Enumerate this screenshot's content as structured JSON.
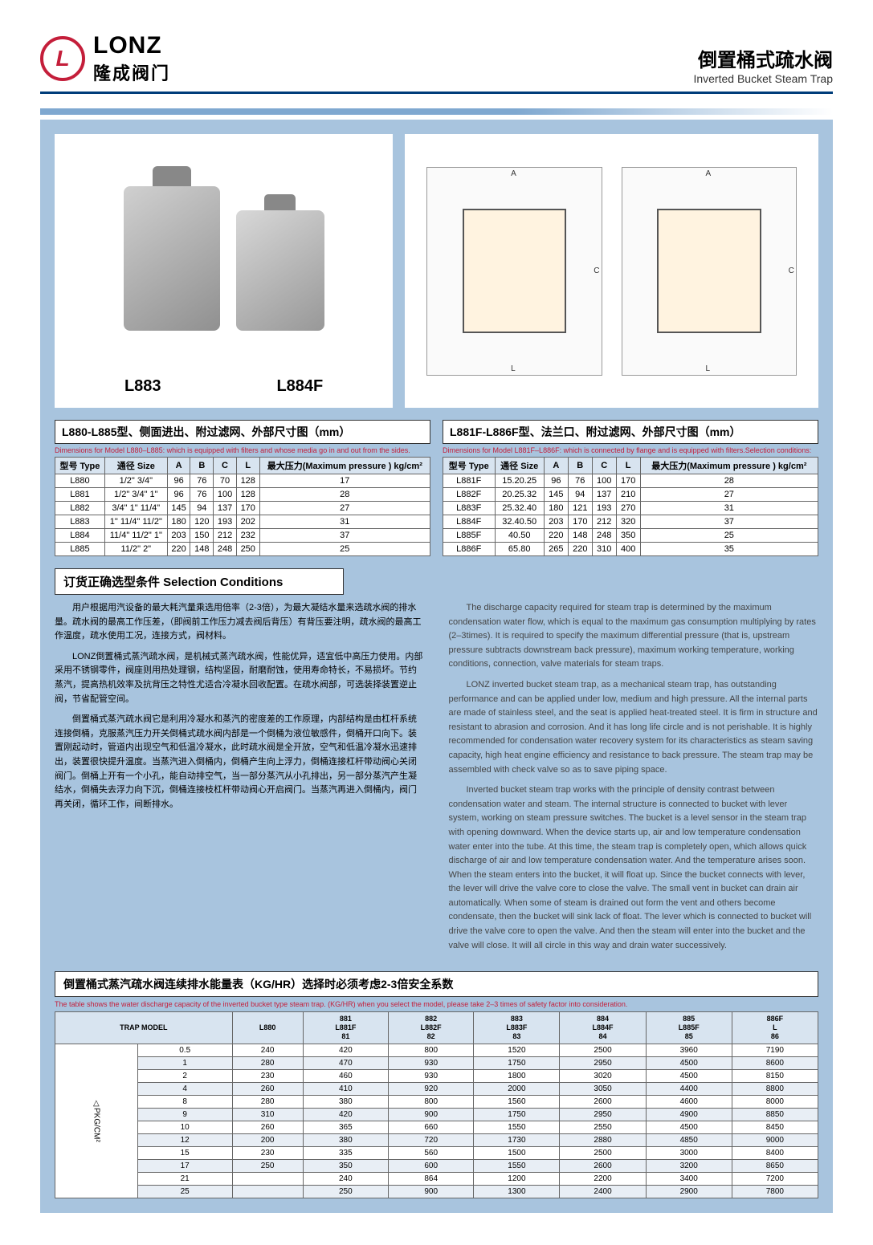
{
  "header": {
    "logo_en": "LONZ",
    "logo_cn": "隆成阀门",
    "title_cn": "倒置桶式疏水阀",
    "title_en": "Inverted Bucket Steam Trap"
  },
  "photos": {
    "label1": "L883",
    "label2": "L884F"
  },
  "table1": {
    "title": "L880-L885型、侧面进出、附过滤网、外部尺寸图（mm）",
    "subtitle": "Dimensions for Model L880–L885: which is equipped with filters and whose media go in and out from the sides.",
    "headers": [
      "型号 Type",
      "通径 Size",
      "A",
      "B",
      "C",
      "L",
      "最大压力(Maximum pressure ) kg/cm²"
    ],
    "rows": [
      [
        "L880",
        "1/2\" 3/4\"",
        "96",
        "76",
        "70",
        "128",
        "17"
      ],
      [
        "L881",
        "1/2\" 3/4\" 1\"",
        "96",
        "76",
        "100",
        "128",
        "28"
      ],
      [
        "L882",
        "3/4\" 1\" 11/4\"",
        "145",
        "94",
        "137",
        "170",
        "27"
      ],
      [
        "L883",
        "1\" 11/4\" 11/2\"",
        "180",
        "120",
        "193",
        "202",
        "31"
      ],
      [
        "L884",
        "11/4\" 11/2\" 1\"",
        "203",
        "150",
        "212",
        "232",
        "37"
      ],
      [
        "L885",
        "11/2\" 2\"",
        "220",
        "148",
        "248",
        "250",
        "25"
      ]
    ]
  },
  "table2": {
    "title": "L881F-L886F型、法兰口、附过滤网、外部尺寸图（mm）",
    "subtitle": "Dimensions for Model L881F–L886F: which is connected by flange and is equipped with filters.Selection conditions:",
    "headers": [
      "型号 Type",
      "通径 Size",
      "A",
      "B",
      "C",
      "L",
      "最大压力(Maximum pressure ) kg/cm²"
    ],
    "rows": [
      [
        "L881F",
        "15.20.25",
        "96",
        "76",
        "100",
        "170",
        "28"
      ],
      [
        "L882F",
        "20.25.32",
        "145",
        "94",
        "137",
        "210",
        "27"
      ],
      [
        "L883F",
        "25.32.40",
        "180",
        "121",
        "193",
        "270",
        "31"
      ],
      [
        "L884F",
        "32.40.50",
        "203",
        "170",
        "212",
        "320",
        "37"
      ],
      [
        "L885F",
        "40.50",
        "220",
        "148",
        "248",
        "350",
        "25"
      ],
      [
        "L886F",
        "65.80",
        "265",
        "220",
        "310",
        "400",
        "35"
      ]
    ]
  },
  "conditions": {
    "title": "订货正确选型条件 Selection Conditions",
    "cn": [
      "用户根据用汽设备的最大耗汽量乘选用倍率（2-3倍），为最大凝结水量来选疏水阀的排水量。疏水阀的最高工作压差，（即阀前工作压力减去阀后背压）有背压要注明，疏水阀的最高工作温度，疏水使用工况，连接方式，阀材料。",
      "LONZ倒置桶式蒸汽疏水阀，是机械式蒸汽疏水阀，性能优异，适宜低中高压力使用。内部采用不锈钢零件，阀座则用热处理钢，结构坚固，耐磨耐蚀，使用寿命特长，不易损坏。节约蒸汽，提高热机效率及抗背压之特性尤适合冷凝水回收配置。在疏水阀部，可选装择装置逆止阀，节省配管空间。",
      "倒置桶式蒸汽疏水阀它是利用冷凝水和蒸汽的密度差的工作原理，内部结构是由杠杆系统连接倒桶，克服蒸汽压力开关倒桶式疏水阀内部是一个倒桶为液位敏感件，倒桶开口向下。装置刚起动时，管道内出现空气和低温冷凝水，此时疏水阀是全开放，空气和低温冷凝水迅速排出，装置很快提升温度。当蒸汽进入倒桶内，倒桶产生向上浮力，倒桶连接杠杆带动阀心关闭阀门。倒桶上开有一个小孔，能自动排空气，当一部分蒸汽从小孔排出，另一部分蒸汽产生凝结水，倒桶失去浮力向下沉，倒桶连接枝杠杆带动阀心开启阀门。当蒸汽再进入倒桶内，阀门再关闭，循环工作，间断排水。"
    ],
    "en": [
      "The discharge capacity required for steam trap is determined by the maximum condensation water flow, which is equal to the maximum gas consumption multiplying by rates (2–3times). It is required to specify the maximum differential pressure (that is, upstream pressure subtracts downstream back pressure), maximum working temperature, working conditions, connection, valve materials for steam traps.",
      "LONZ inverted bucket steam trap, as a mechanical steam trap, has outstanding performance and can be applied under low, medium and high pressure. All the internal parts are made of stainless steel, and the seat is applied heat-treated steel. It is firm in structure and resistant to abrasion and corrosion. And it has long life circle and is not perishable. It is highly recommended for condensation water recovery system for its characteristics as steam saving capacity, high heat engine efficiency and resistance to back pressure. The steam trap may be assembled with check valve so as to save piping space.",
      "Inverted bucket steam trap works with the principle of density contrast between condensation water and steam. The internal structure is connected to bucket with lever system, working on steam pressure switches. The bucket is a level sensor in the steam trap with opening downward. When the device starts up, air and low temperature condensation water enter into the tube. At this time, the steam trap is completely open, which allows quick discharge of air and low temperature condensation water. And the temperature arises soon. When the steam enters into the bucket, it will float up. Since the bucket connects with lever, the lever will drive the valve core to close the valve. The small vent in bucket can drain air automatically. When some of steam is drained out form the vent and others become condensate, then the bucket will sink lack of float. The lever which is connected to bucket will drive the valve core to open the valve. And then the steam will enter into the bucket and the valve will close. It will all circle in this way and drain water successively."
    ]
  },
  "capacity": {
    "title": "倒置桶式蒸汽疏水阀连续排水能量表（KG/HR）选择时必须考虑2-3倍安全系数",
    "subtitle": "The table shows the water discharge capacity of the inverted bucket type steam trap. (KG/HR) when you select the model, please take 2–3 times of safety factor into consideration.",
    "row_header": "△PKG/CM²",
    "col_headers": [
      "TRAP MODEL",
      "L880",
      "881\nL881F\n81",
      "882\nL882F\n82",
      "883\nL883F\n83",
      "884\nL884F\n84",
      "885\nL885F\n85",
      "886F\nL\n86"
    ],
    "rows": [
      [
        "0.5",
        "240",
        "420",
        "800",
        "1520",
        "2500",
        "3960",
        "7190"
      ],
      [
        "1",
        "280",
        "470",
        "930",
        "1750",
        "2950",
        "4500",
        "8600"
      ],
      [
        "2",
        "230",
        "460",
        "930",
        "1800",
        "3020",
        "4500",
        "8150"
      ],
      [
        "4",
        "260",
        "410",
        "920",
        "2000",
        "3050",
        "4400",
        "8800"
      ],
      [
        "8",
        "280",
        "380",
        "800",
        "1560",
        "2600",
        "4600",
        "8000"
      ],
      [
        "9",
        "310",
        "420",
        "900",
        "1750",
        "2950",
        "4900",
        "8850"
      ],
      [
        "10",
        "260",
        "365",
        "660",
        "1550",
        "2550",
        "4500",
        "8450"
      ],
      [
        "12",
        "200",
        "380",
        "720",
        "1730",
        "2880",
        "4850",
        "9000"
      ],
      [
        "15",
        "230",
        "335",
        "560",
        "1500",
        "2500",
        "3000",
        "8400"
      ],
      [
        "17",
        "250",
        "350",
        "600",
        "1550",
        "2600",
        "3200",
        "8650"
      ],
      [
        "21",
        "",
        "240",
        "864",
        "1200",
        "2200",
        "3400",
        "7200"
      ],
      [
        "25",
        "",
        "250",
        "900",
        "1300",
        "2400",
        "2900",
        "7800"
      ]
    ]
  }
}
